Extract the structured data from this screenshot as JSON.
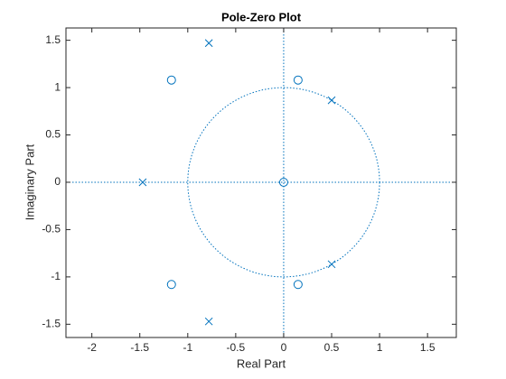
{
  "chart_data": {
    "type": "scatter",
    "title": "Pole-Zero Plot",
    "x_label": "Real Part",
    "y_label": "Imaginary Part",
    "series": [
      {
        "marker": "o",
        "color": "#0072bd",
        "x": [
          0,
          0.15,
          0.15,
          -1.17,
          -1.17
        ],
        "y": [
          0,
          1.08,
          -1.08,
          1.08,
          -1.08
        ]
      },
      {
        "marker": "x",
        "color": "#0072bd",
        "x": [
          -0.78,
          -0.78,
          0.5,
          0.5,
          -1.47
        ],
        "y": [
          1.47,
          -1.47,
          0.866,
          -0.866,
          0
        ]
      }
    ],
    "unit_circle": true,
    "xlim": [
      -2.27,
      1.8
    ],
    "ylim": [
      -1.64,
      1.63
    ],
    "xticks": [
      -2,
      -1.5,
      -1,
      -0.5,
      0,
      0.5,
      1,
      1.5
    ],
    "yticks": [
      -1.5,
      -1,
      -0.5,
      0,
      0.5,
      1,
      1.5
    ],
    "grid": false
  }
}
